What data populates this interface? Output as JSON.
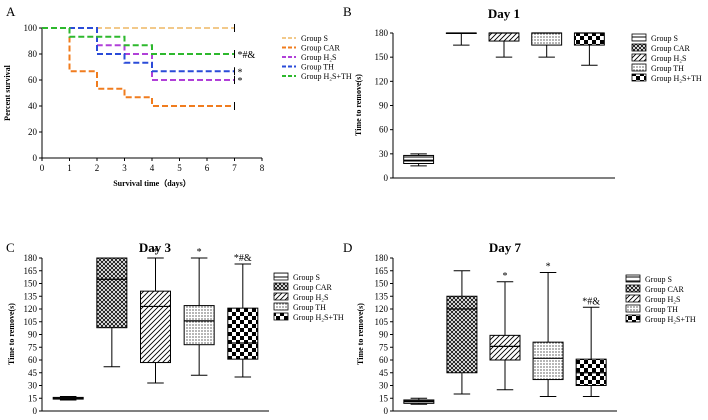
{
  "chart_data": [
    {
      "panel_label": "A",
      "type": "line",
      "subtype": "kaplan-meier survival",
      "title": "",
      "xlabel": "Survival time（days）",
      "ylabel": "Percent survival",
      "xlim": [
        0,
        8
      ],
      "ylim": [
        0,
        100
      ],
      "xticks": [
        "0",
        "1",
        "2",
        "3",
        "4",
        "5",
        "6",
        "7",
        "8"
      ],
      "yticks": [
        "0",
        "20",
        "40",
        "60",
        "80",
        "100"
      ],
      "series": [
        {
          "name": "Group S",
          "color": "#F2C98A",
          "legend": "Group S",
          "steps": [
            [
              0,
              100
            ],
            [
              7,
              100
            ]
          ]
        },
        {
          "name": "Group CAR",
          "color": "#F07C1E",
          "legend": "Group CAR",
          "steps": [
            [
              0,
              100
            ],
            [
              1,
              66.7
            ],
            [
              2,
              53.3
            ],
            [
              3,
              46.7
            ],
            [
              4,
              40
            ],
            [
              7,
              40
            ]
          ]
        },
        {
          "name": "Group H2S",
          "color": "#B040D8",
          "legend": "Group H₂S",
          "steps": [
            [
              0,
              100
            ],
            [
              2,
              86.7
            ],
            [
              3,
              80
            ],
            [
              4,
              60
            ],
            [
              7,
              60
            ]
          ],
          "annotation": "*"
        },
        {
          "name": "Group TH",
          "color": "#2A4BD8",
          "legend": "Group TH",
          "steps": [
            [
              0,
              100
            ],
            [
              2,
              80
            ],
            [
              3,
              73.3
            ],
            [
              4,
              66.7
            ],
            [
              7,
              66.7
            ]
          ],
          "annotation": "*"
        },
        {
          "name": "Group H2S+TH",
          "color": "#2DB82D",
          "legend": "Group H₂S+TH",
          "steps": [
            [
              0,
              100
            ],
            [
              1,
              93.3
            ],
            [
              3,
              86.7
            ],
            [
              4,
              80
            ],
            [
              7,
              80
            ]
          ],
          "annotation": "*#&"
        }
      ]
    },
    {
      "panel_label": "B",
      "type": "box",
      "title": "Day 1",
      "xlabel": "",
      "ylabel": "Time to remove(s)",
      "ylim": [
        0,
        180
      ],
      "yticks": [
        "0",
        "30",
        "60",
        "90",
        "120",
        "150",
        "180"
      ],
      "groups": [
        {
          "name": "Group S",
          "legend": "Group S",
          "pattern": "horiz",
          "min": 15,
          "q1": 18,
          "median": 22,
          "q3": 28,
          "max": 30,
          "annotation": ""
        },
        {
          "name": "Group CAR",
          "legend": "Group CAR",
          "pattern": "grid",
          "min": 165,
          "q1": 180,
          "median": 180,
          "q3": 180,
          "max": 180,
          "annotation": ""
        },
        {
          "name": "Group H2S",
          "legend": "Group H₂S",
          "pattern": "diag",
          "min": 150,
          "q1": 170,
          "median": 180,
          "q3": 180,
          "max": 180,
          "annotation": ""
        },
        {
          "name": "Group TH",
          "legend": "Group TH",
          "pattern": "dots",
          "min": 150,
          "q1": 165,
          "median": 180,
          "q3": 180,
          "max": 180,
          "annotation": ""
        },
        {
          "name": "Group H2S+TH",
          "legend": "Group H₂S+TH",
          "pattern": "checker",
          "min": 140,
          "q1": 165,
          "median": 180,
          "q3": 180,
          "max": 180,
          "annotation": ""
        }
      ]
    },
    {
      "panel_label": "C",
      "type": "box",
      "title": "Day 3",
      "xlabel": "",
      "ylabel": "Time to remove(s)",
      "ylim": [
        0,
        180
      ],
      "yticks": [
        "0",
        "15",
        "30",
        "45",
        "60",
        "75",
        "90",
        "105",
        "120",
        "135",
        "150",
        "165",
        "180"
      ],
      "groups": [
        {
          "name": "Group S",
          "legend": "Group S",
          "pattern": "horiz",
          "min": 13,
          "q1": 14,
          "median": 15,
          "q3": 16,
          "max": 17,
          "annotation": ""
        },
        {
          "name": "Group CAR",
          "legend": "Group CAR",
          "pattern": "grid",
          "min": 52,
          "q1": 98,
          "median": 155,
          "q3": 180,
          "max": 180,
          "annotation": ""
        },
        {
          "name": "Group H2S",
          "legend": "Group H₂S",
          "pattern": "diag",
          "min": 33,
          "q1": 57,
          "median": 123,
          "q3": 141,
          "max": 180,
          "annotation": "*"
        },
        {
          "name": "Group TH",
          "legend": "Group TH",
          "pattern": "dots",
          "min": 42,
          "q1": 78,
          "median": 106,
          "q3": 124,
          "max": 180,
          "annotation": "*"
        },
        {
          "name": "Group H2S+TH",
          "legend": "Group H₂S+TH",
          "pattern": "checker",
          "min": 40,
          "q1": 61,
          "median": 80,
          "q3": 121,
          "max": 173,
          "annotation": "*#&"
        }
      ]
    },
    {
      "panel_label": "D",
      "type": "box",
      "title": "Day 7",
      "xlabel": "",
      "ylabel": "Time to remove(s)",
      "ylim": [
        0,
        180
      ],
      "yticks": [
        "0",
        "15",
        "30",
        "45",
        "60",
        "75",
        "90",
        "105",
        "120",
        "135",
        "150",
        "165",
        "180"
      ],
      "groups": [
        {
          "name": "Group S",
          "legend": "Group S",
          "pattern": "horiz",
          "min": 8,
          "q1": 9,
          "median": 11,
          "q3": 13,
          "max": 15,
          "annotation": ""
        },
        {
          "name": "Group CAR",
          "legend": "Group CAR",
          "pattern": "grid",
          "min": 20,
          "q1": 45,
          "median": 120,
          "q3": 135,
          "max": 165,
          "annotation": ""
        },
        {
          "name": "Group H2S",
          "legend": "Group H₂S",
          "pattern": "diag",
          "min": 25,
          "q1": 60,
          "median": 76,
          "q3": 89,
          "max": 152,
          "annotation": "*"
        },
        {
          "name": "Group TH",
          "legend": "Group TH",
          "pattern": "dots",
          "min": 17,
          "q1": 37,
          "median": 62,
          "q3": 81,
          "max": 163,
          "annotation": "*"
        },
        {
          "name": "Group H2S+TH",
          "legend": "Group H₂S+TH",
          "pattern": "checker",
          "min": 17,
          "q1": 30,
          "median": 45,
          "q3": 61,
          "max": 122,
          "annotation": "*#&"
        }
      ]
    }
  ]
}
